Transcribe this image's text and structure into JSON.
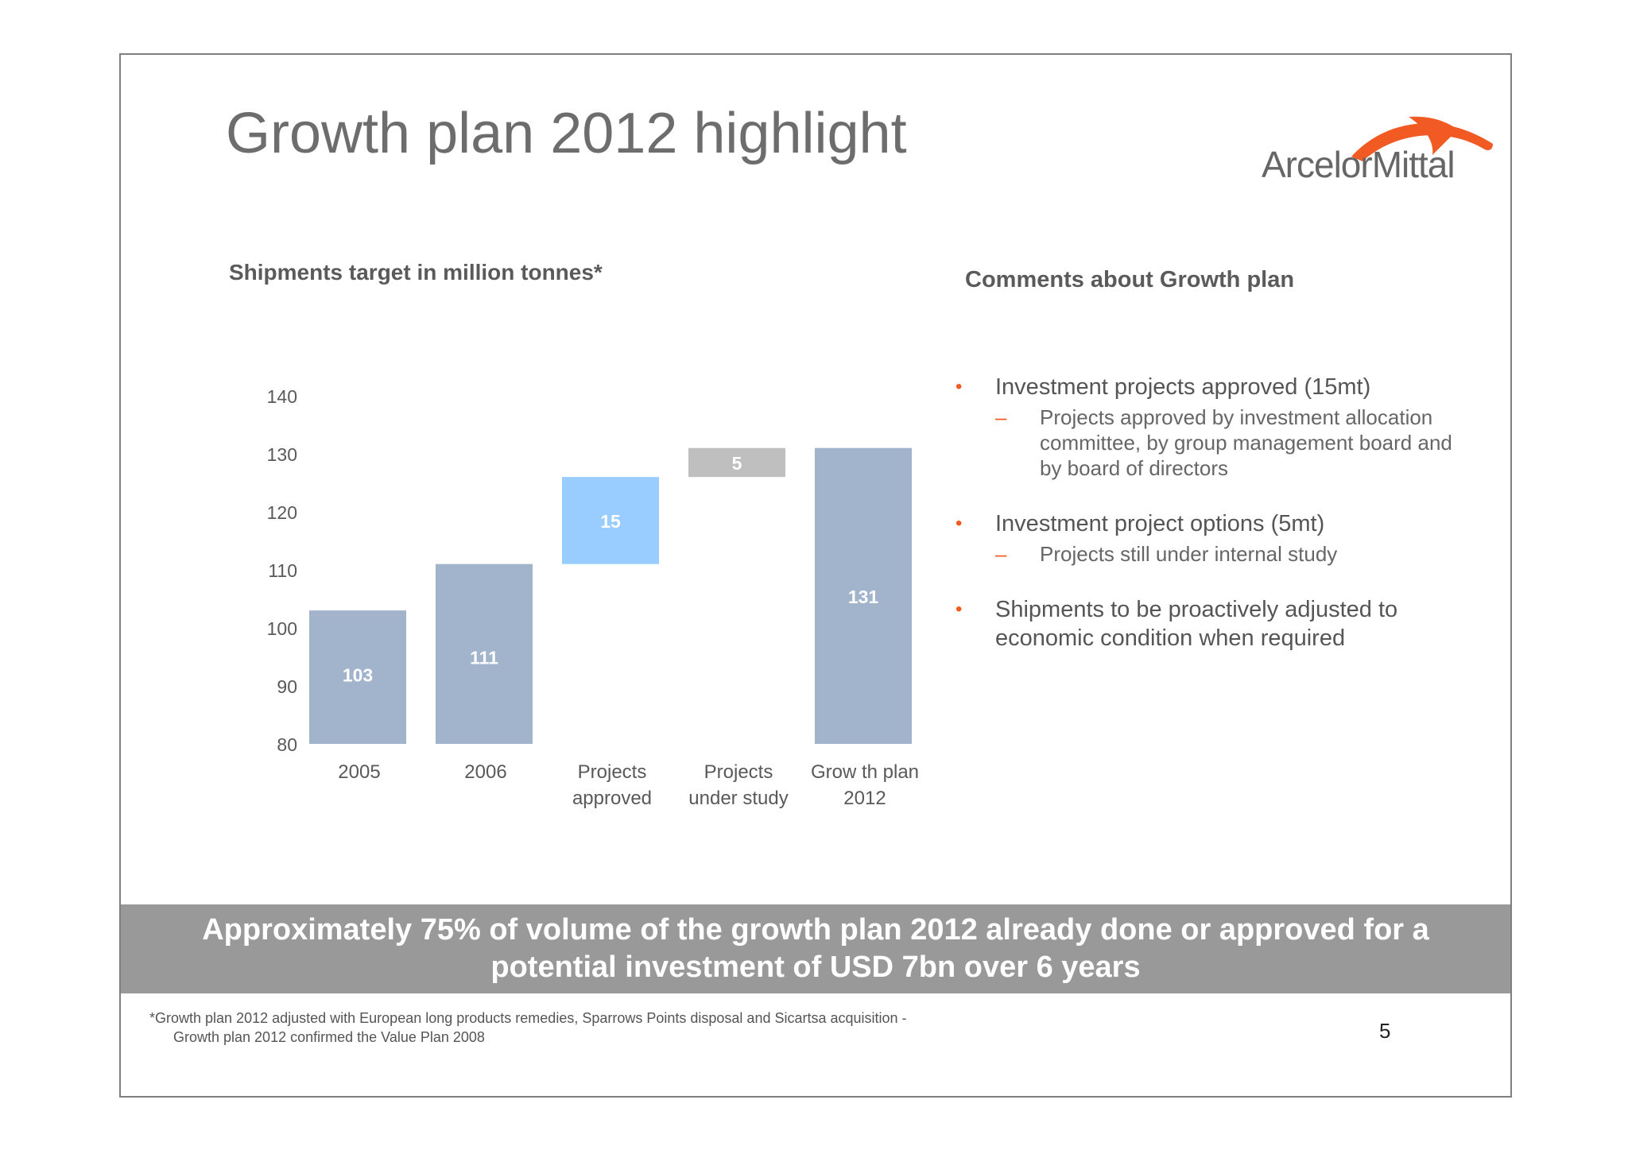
{
  "slide": {
    "title": "Growth plan 2012 highlight",
    "logo_text": "ArcelorMittal",
    "comments_title": "Comments about Growth plan",
    "bullets": [
      {
        "text": "Investment projects approved (15mt)",
        "dash": "–",
        "sub": [
          "Projects approved by investment allocation",
          "committee, by group management board and",
          "by board of directors"
        ]
      },
      {
        "text": "Investment project options (5mt)",
        "dash": "–",
        "sub": [
          "Projects still under internal study"
        ]
      },
      {
        "text": "Shipments to be proactively adjusted to",
        "text2": "economic condition when required"
      }
    ],
    "banner": {
      "line1": "Approximately 75% of volume of the growth plan 2012 already done or approved for a",
      "line2": "potential investment of USD 7bn over 6 years"
    },
    "footnote": {
      "line1": "*Growth plan 2012 adjusted with European long products remedies, Sparrows Points disposal and Sicartsa acquisition -",
      "line2": "Growth plan 2012 confirmed the Value Plan 2008"
    },
    "page_number": "5",
    "colors": {
      "accent": "#f15a22",
      "bar_total": "#a2b3cc",
      "bar_approved": "#99ccff",
      "bar_study": "#bfbfbf",
      "banner": "#999999"
    }
  },
  "chart_data": {
    "type": "bar",
    "subtype": "waterfall",
    "title": "Shipments target in million tonnes*",
    "categories": [
      [
        "2005"
      ],
      [
        "2006"
      ],
      [
        "Projects",
        "approved"
      ],
      [
        "Projects",
        "under study"
      ],
      [
        "Grow th plan",
        "2012"
      ]
    ],
    "bars": [
      {
        "base": 80,
        "top": 103,
        "label": "103",
        "color": "#a2b3cc"
      },
      {
        "base": 80,
        "top": 111,
        "label": "111",
        "color": "#a2b3cc"
      },
      {
        "base": 111,
        "top": 126,
        "label": "15",
        "color": "#99ccff"
      },
      {
        "base": 126,
        "top": 131,
        "label": "5",
        "color": "#bfbfbf"
      },
      {
        "base": 80,
        "top": 131,
        "label": "131",
        "color": "#a2b3cc"
      }
    ],
    "yticks": [
      "80",
      "90",
      "100",
      "110",
      "120",
      "130",
      "140"
    ],
    "ylim": [
      80,
      140
    ],
    "grid": false
  }
}
